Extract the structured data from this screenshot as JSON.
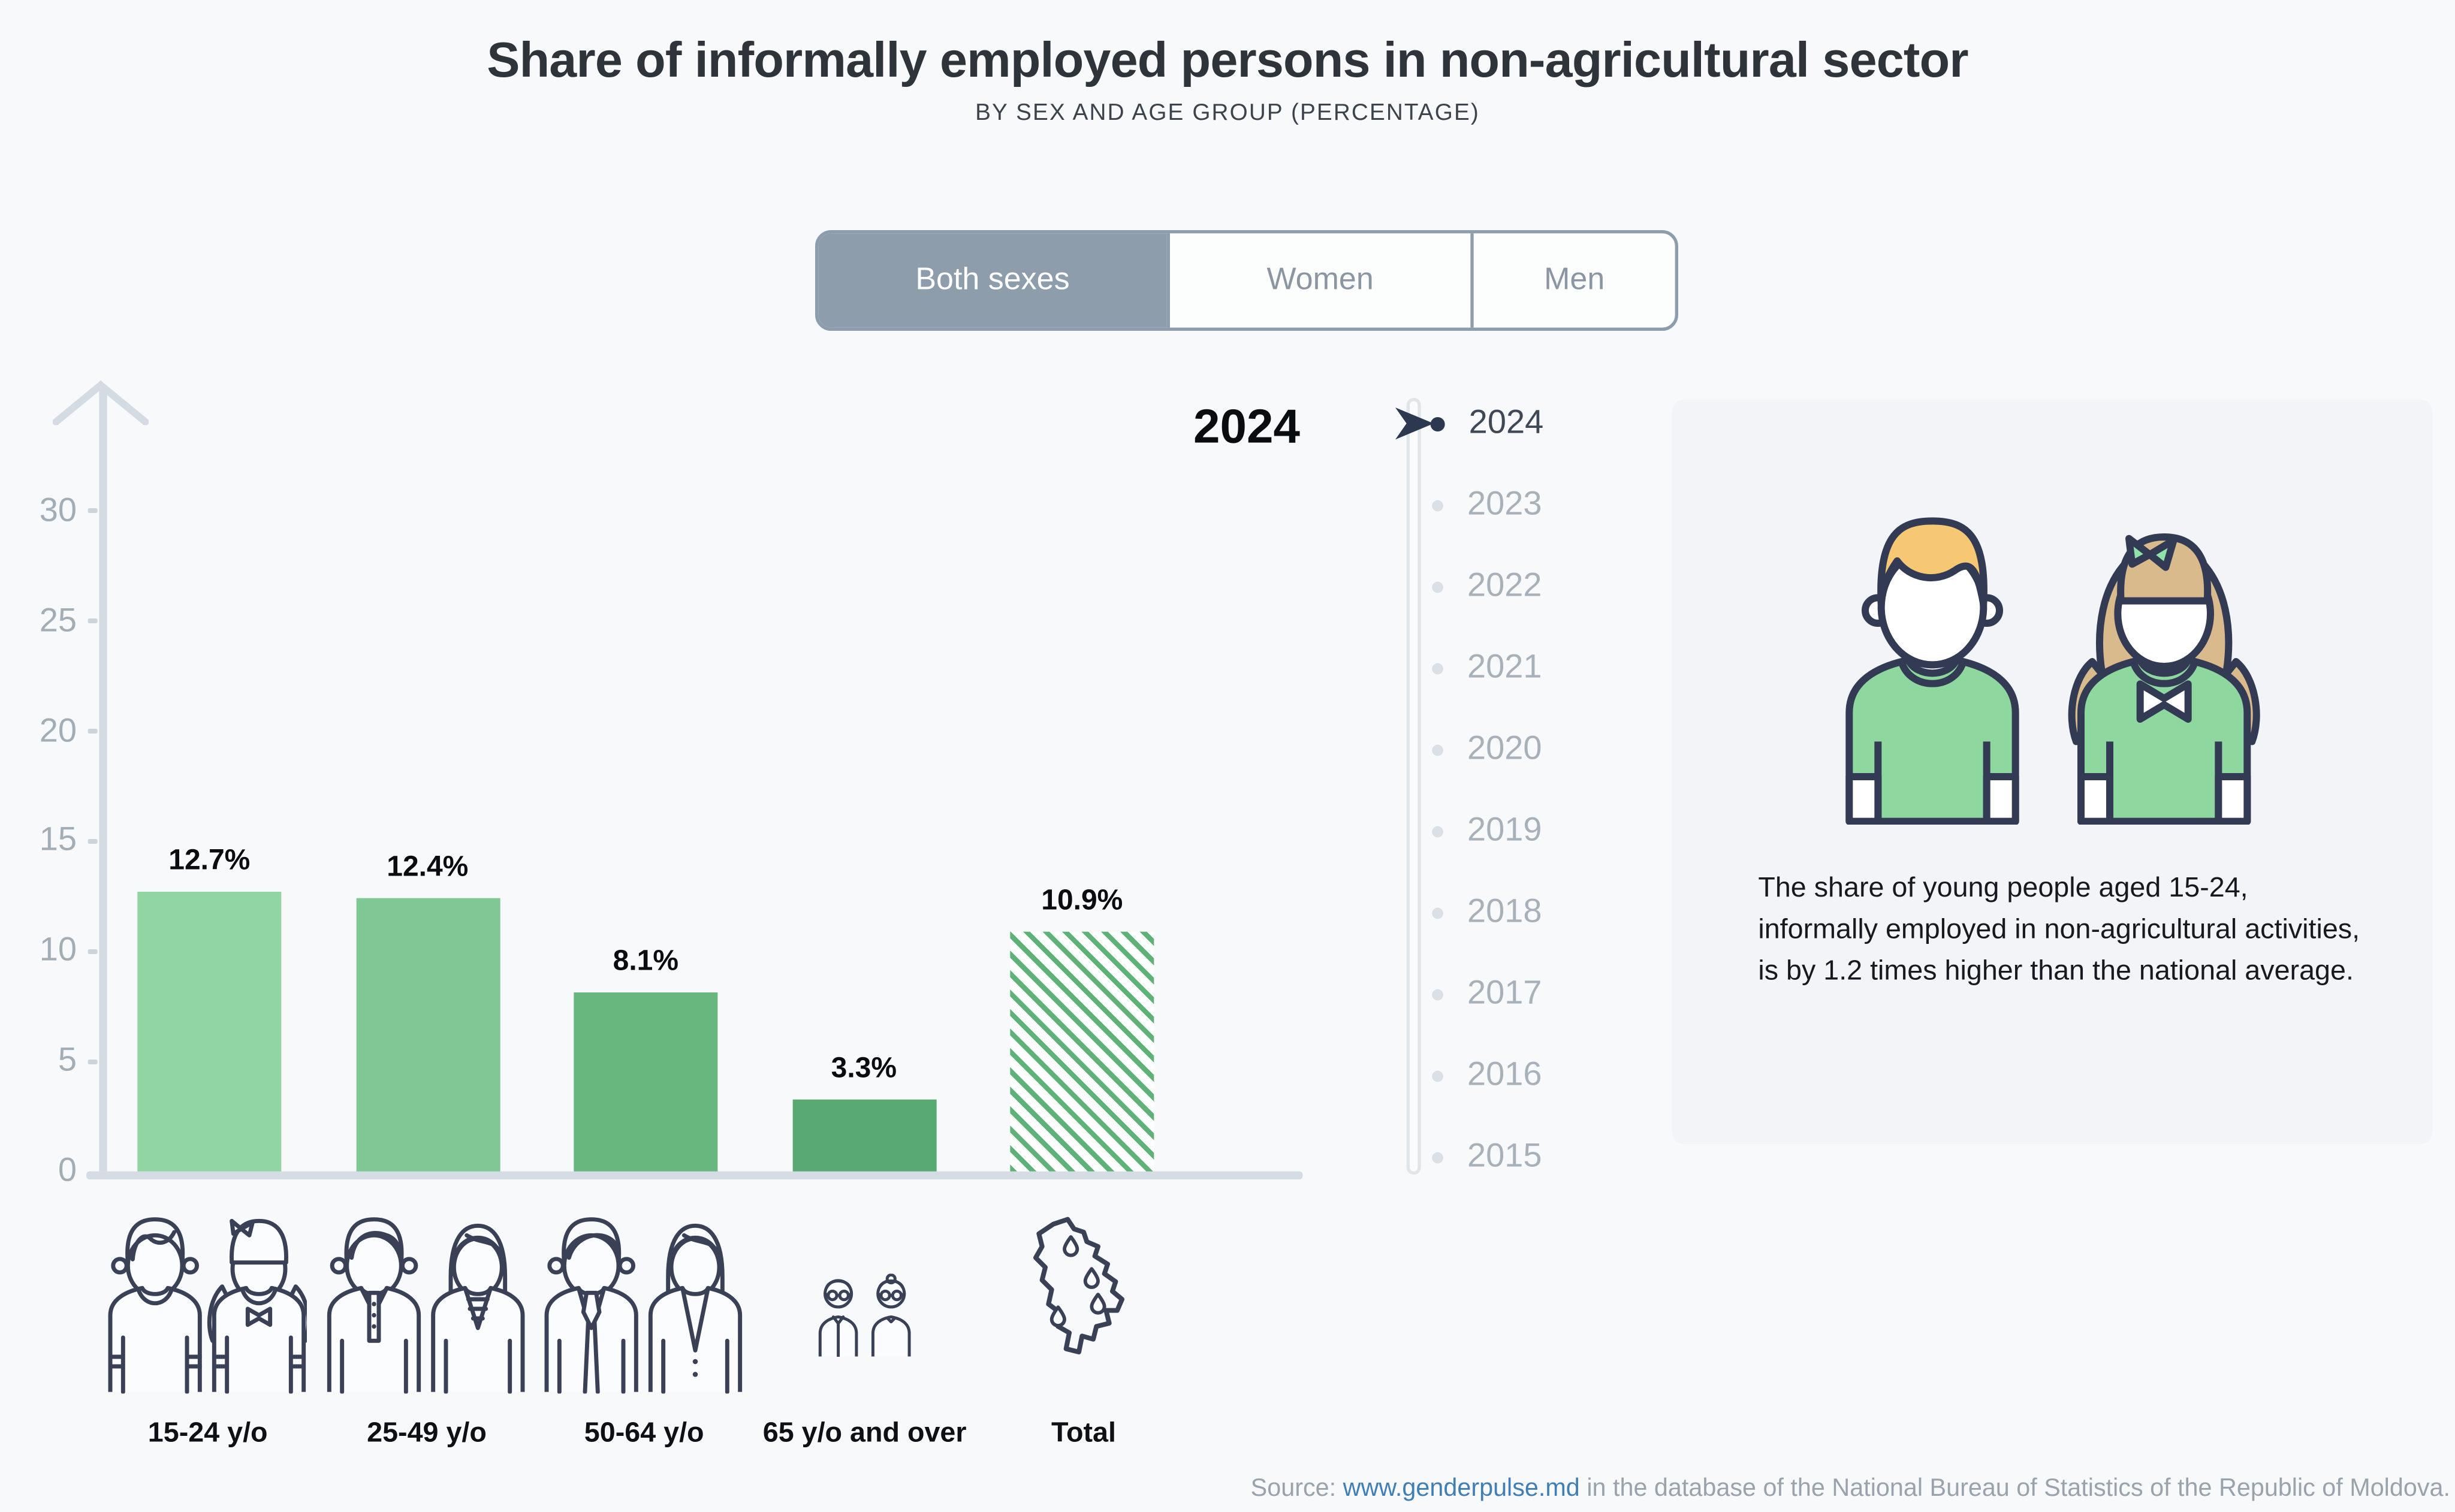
{
  "title": "Share of informally employed persons in non-agricultural sector",
  "subtitle": "BY SEX AND AGE GROUP (PERCENTAGE)",
  "sex_toggle": {
    "options": [
      {
        "label": "Both sexes",
        "selected": true
      },
      {
        "label": "Women",
        "selected": false
      },
      {
        "label": "Men",
        "selected": false
      }
    ]
  },
  "chart_data": {
    "type": "bar",
    "title": "Share of informally employed persons in non-agricultural sector",
    "subtitle": "BY SEX AND AGE GROUP (PERCENTAGE)",
    "selected_year": "2024",
    "categories": [
      "15-24 y/o",
      "25-49 y/o",
      "50-64 y/o",
      "65 y/o and over",
      "Total"
    ],
    "values": [
      12.7,
      12.4,
      8.1,
      3.3,
      10.9
    ],
    "value_labels": [
      "12.7%",
      "12.4%",
      "8.1%",
      "3.3%",
      "10.9%"
    ],
    "xlabel": "",
    "ylabel": "",
    "ylim": [
      0,
      30
    ],
    "yticks": [
      0,
      5,
      10,
      15,
      20,
      25,
      30
    ],
    "grid": false,
    "legend": "none",
    "bar_styles": [
      "#90d5a2",
      "#7fc795",
      "#68b77f",
      "#58aa72",
      "hatch:#5fb277"
    ]
  },
  "timeline": {
    "years": [
      "2024",
      "2023",
      "2022",
      "2021",
      "2020",
      "2019",
      "2018",
      "2017",
      "2016",
      "2015"
    ],
    "selected": "2024"
  },
  "info_card": {
    "text": "The share of young people aged 15-24, informally employed in non-agricultural activities, is by 1.2 times higher than the national average."
  },
  "source": {
    "prefix": "Source: ",
    "link_text": "www.genderpulse.md",
    "suffix": " in the database of the National Bureau of Statistics of the Republic of Moldova."
  },
  "colors": {
    "page_bg": "#f8f9fb",
    "info_card_bg": "#f2f4f7",
    "toggle_selected_bg": "#8d9dab",
    "axis_gray": "#d6dce3",
    "bar_green_light": "#90d5a2",
    "bar_green_dark": "#58aa72",
    "hatch_green": "#5fb277",
    "timeline_active": "#2c3850",
    "link_blue": "#3f7fb6",
    "icon_outline": "#3a4157",
    "hair_yellow": "#f6c873",
    "hair_tan": "#d9ba8c",
    "shirt_green": "#8ed79f"
  }
}
